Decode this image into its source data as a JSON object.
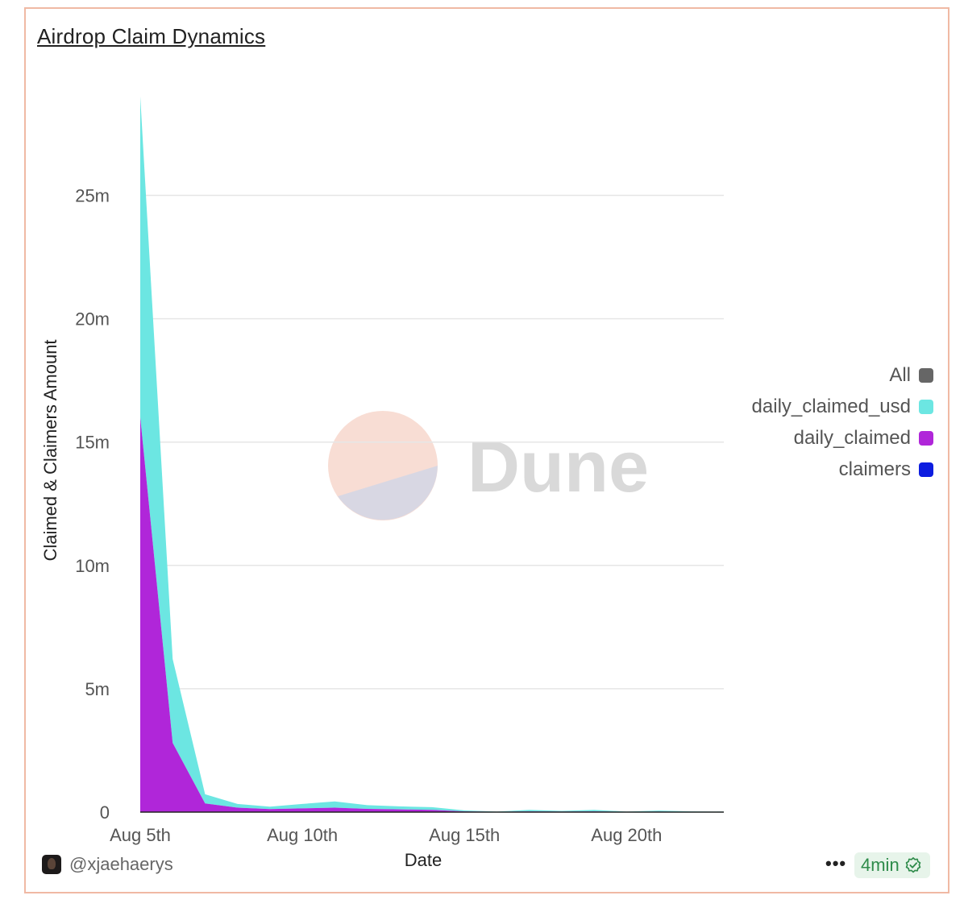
{
  "header": {
    "title": "Airdrop Claim Dynamics"
  },
  "legend": {
    "items": [
      {
        "label": "All",
        "color": "#666666"
      },
      {
        "label": "daily_claimed_usd",
        "color": "#6ce6e2"
      },
      {
        "label": "daily_claimed",
        "color": "#b026d9"
      },
      {
        "label": "claimers",
        "color": "#0d1de0"
      }
    ]
  },
  "watermark": {
    "text": "Dune"
  },
  "footer": {
    "author": "@xjaehaerys",
    "more_label": "•••",
    "refresh_label": "4min",
    "avatar_icon": "user-avatar",
    "refresh_icon": "check-badge-icon"
  },
  "chart_data": {
    "type": "area",
    "stacked": true,
    "xlabel": "Date",
    "ylabel": "Claimed & Claimers Amount",
    "x": [
      "Aug 5th",
      "Aug 6th",
      "Aug 7th",
      "Aug 8th",
      "Aug 9th",
      "Aug 10th",
      "Aug 11th",
      "Aug 12th",
      "Aug 13th",
      "Aug 14th",
      "Aug 15th",
      "Aug 16th",
      "Aug 17th",
      "Aug 18th",
      "Aug 19th",
      "Aug 20th",
      "Aug 21st",
      "Aug 22nd",
      "Aug 23rd"
    ],
    "x_ticks": [
      "Aug 5th",
      "Aug 10th",
      "Aug 15th",
      "Aug 20th"
    ],
    "y_ticks": [
      0,
      5000000,
      10000000,
      15000000,
      20000000,
      25000000
    ],
    "y_tick_labels": [
      "0",
      "5m",
      "10m",
      "15m",
      "20m",
      "25m"
    ],
    "ylim": [
      0,
      29000000
    ],
    "grid": true,
    "legend_position": "right",
    "series": [
      {
        "name": "claimers",
        "color": "#0d1de0",
        "values": [
          12000,
          5000,
          2000,
          1500,
          1200,
          1000,
          900,
          800,
          700,
          600,
          500,
          500,
          400,
          400,
          300,
          300,
          300,
          300,
          300
        ]
      },
      {
        "name": "daily_claimed",
        "color": "#b026d9",
        "values": [
          16000000,
          2800000,
          350000,
          180000,
          120000,
          150000,
          180000,
          130000,
          110000,
          90000,
          30000,
          10000,
          30000,
          20000,
          30000,
          10000,
          20000,
          10000,
          10000
        ]
      },
      {
        "name": "daily_claimed_usd",
        "color": "#6ce6e2",
        "values": [
          13000000,
          3400000,
          370000,
          150000,
          100000,
          180000,
          250000,
          150000,
          120000,
          110000,
          40000,
          10000,
          60000,
          30000,
          60000,
          10000,
          40000,
          20000,
          10000
        ]
      }
    ]
  }
}
